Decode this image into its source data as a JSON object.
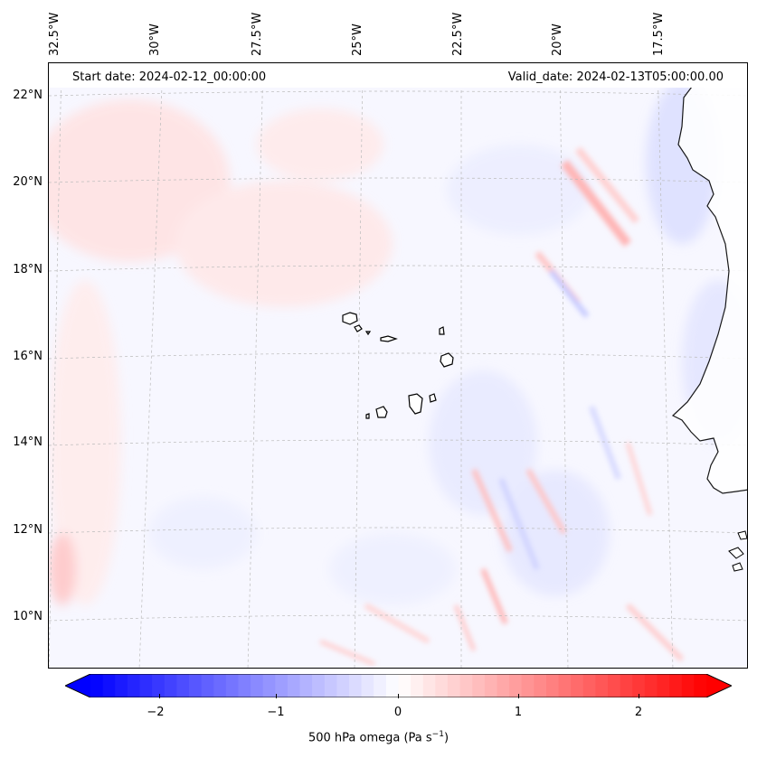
{
  "header": {
    "start_date": "Start date: 2024-02-12_00:00:00",
    "valid_date": "Valid_date: 2024-02-13T05:00:00.00"
  },
  "longitude_labels": [
    "32.5°W",
    "30°W",
    "27.5°W",
    "25°W",
    "22.5°W",
    "20°W",
    "17.5°W"
  ],
  "latitude_labels": [
    "22°N",
    "20°N",
    "18°N",
    "16°N",
    "14°N",
    "12°N",
    "10°N"
  ],
  "colorbar": {
    "label_main": "500 hPa omega (Pa s",
    "label_exp": "−1",
    "label_close": ")",
    "tick_labels": [
      "−2",
      "−1",
      "0",
      "1",
      "2"
    ],
    "ticks": [
      -2,
      -1,
      0,
      1,
      2
    ],
    "range": [
      -2.5,
      2.5
    ],
    "extend": "both",
    "colormap": "bwr",
    "color_low": "#0000ff",
    "color_mid": "#ffffff",
    "color_high": "#ff0000"
  },
  "map": {
    "land_color": "#ffffff",
    "coastline_color": "#000000",
    "gridline_color": "#bbbbbb",
    "field_background": "#f7f7ff"
  }
}
